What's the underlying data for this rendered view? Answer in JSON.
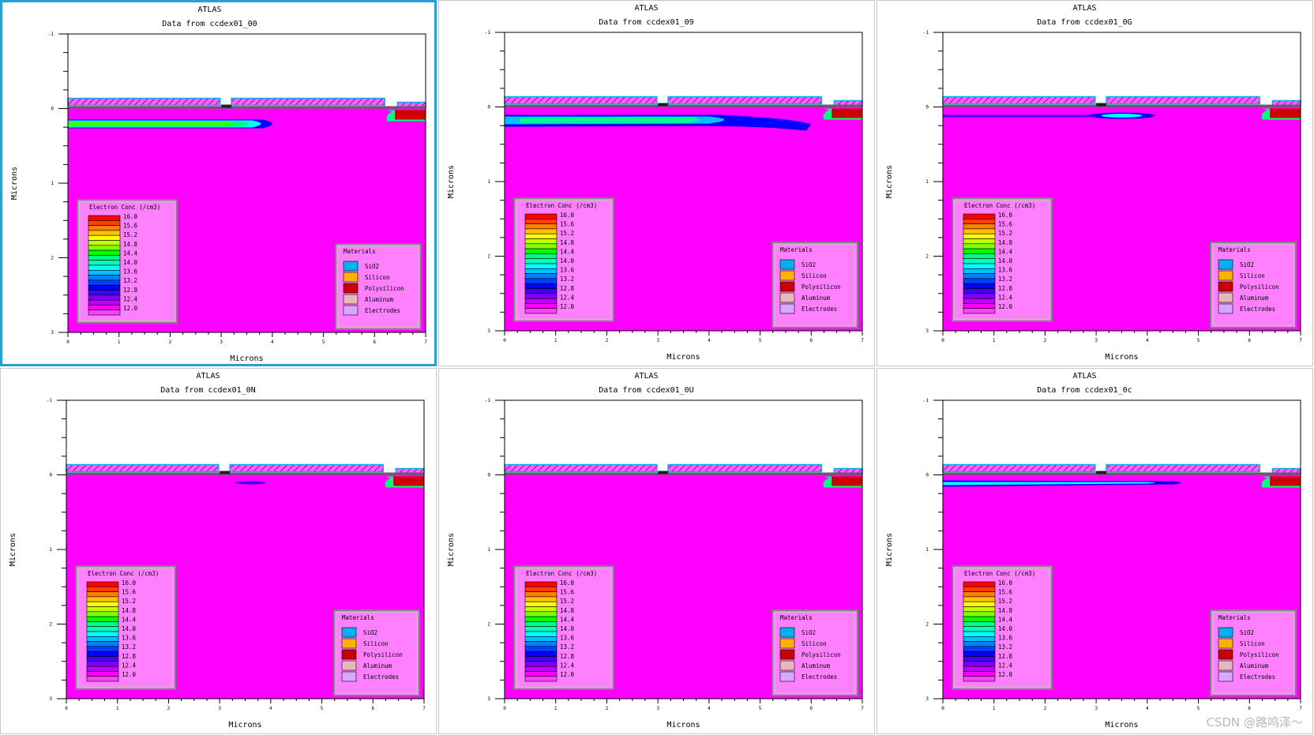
{
  "app": "ATLAS",
  "watermark": "CSDN @路鸣泽～",
  "colors": {
    "silicon_bg": "#ff00ff",
    "sio2": "#00b0f0",
    "silicon": "#ffb000",
    "polysilicon": "#cc0000",
    "aluminum": "#e8b8b8",
    "electrodes": "#d8a8ff",
    "legend_bg": "#ff80ff",
    "selected_border": "#2a9fd6"
  },
  "legend": {
    "title": "Electron Conc (/cm3)",
    "levels": [
      "16.0",
      "15.6",
      "15.2",
      "14.8",
      "14.4",
      "14.0",
      "13.6",
      "13.2",
      "12.8",
      "12.4",
      "12.0"
    ],
    "materials_title": "Materials",
    "materials": [
      {
        "name": "SiO2",
        "color": "#00b0f0"
      },
      {
        "name": "Silicon",
        "color": "#ffb000"
      },
      {
        "name": "Polysilicon",
        "color": "#cc0000"
      },
      {
        "name": "Aluminum",
        "color": "#e8b8b8"
      },
      {
        "name": "Electrodes",
        "color": "#d8a8ff"
      }
    ]
  },
  "panels": [
    {
      "title": "ATLAS",
      "subtitle": "Data from ccdex01_00",
      "selected": true,
      "channel": "strong"
    },
    {
      "title": "ATLAS",
      "subtitle": "Data from ccdex01_09",
      "selected": false,
      "channel": "wide"
    },
    {
      "title": "ATLAS",
      "subtitle": "Data from ccdex01_0G",
      "selected": false,
      "channel": "thin"
    },
    {
      "title": "ATLAS",
      "subtitle": "Data from ccdex01_0N",
      "selected": false,
      "channel": "dot"
    },
    {
      "title": "ATLAS",
      "subtitle": "Data from ccdex01_0U",
      "selected": false,
      "channel": "none"
    },
    {
      "title": "ATLAS",
      "subtitle": "Data from ccdex01_0c",
      "selected": false,
      "channel": "thin2"
    }
  ],
  "chart_data": {
    "type": "heatmap",
    "xlabel": "Microns",
    "ylabel": "Microns",
    "xlim": [
      0,
      7
    ],
    "ylim": [
      -1,
      3
    ],
    "x_ticks": [
      "0",
      "1",
      "2",
      "3",
      "4",
      "5",
      "6",
      "7"
    ],
    "y_ticks": [
      "-1",
      "0",
      "1",
      "2",
      "3"
    ],
    "contour_levels": [
      16.0,
      15.6,
      15.2,
      14.8,
      14.4,
      14.0,
      13.6,
      13.2,
      12.8,
      12.4,
      12.0
    ],
    "legend_placement": "bottom-left"
  }
}
